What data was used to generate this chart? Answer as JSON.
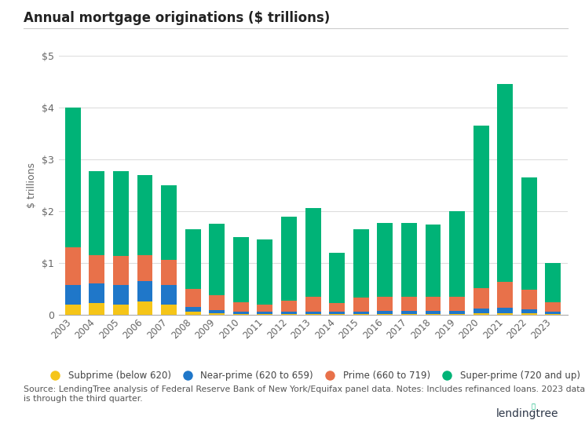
{
  "years": [
    2003,
    2004,
    2005,
    2006,
    2007,
    2008,
    2009,
    2010,
    2011,
    2012,
    2013,
    2014,
    2015,
    2016,
    2017,
    2018,
    2019,
    2020,
    2021,
    2022,
    2023
  ],
  "subprime": [
    0.2,
    0.22,
    0.2,
    0.25,
    0.2,
    0.05,
    0.02,
    0.01,
    0.01,
    0.01,
    0.01,
    0.01,
    0.01,
    0.01,
    0.01,
    0.01,
    0.01,
    0.02,
    0.02,
    0.02,
    0.01
  ],
  "near_prime": [
    0.38,
    0.38,
    0.38,
    0.4,
    0.38,
    0.1,
    0.07,
    0.05,
    0.04,
    0.04,
    0.05,
    0.04,
    0.05,
    0.06,
    0.06,
    0.06,
    0.06,
    0.1,
    0.12,
    0.08,
    0.05
  ],
  "prime": [
    0.72,
    0.55,
    0.55,
    0.5,
    0.48,
    0.35,
    0.28,
    0.18,
    0.15,
    0.22,
    0.28,
    0.18,
    0.27,
    0.28,
    0.28,
    0.27,
    0.28,
    0.4,
    0.5,
    0.38,
    0.18
  ],
  "super_prime": [
    2.7,
    1.63,
    1.65,
    1.55,
    1.44,
    1.15,
    1.38,
    1.26,
    1.25,
    1.63,
    1.72,
    0.97,
    1.32,
    1.43,
    1.43,
    1.4,
    1.65,
    3.13,
    3.82,
    2.18,
    0.76
  ],
  "colors": {
    "subprime": "#f5c518",
    "near_prime": "#1f77c9",
    "prime": "#e8714a",
    "super_prime": "#00b377"
  },
  "title": "Annual mortgage originations ($ trillions)",
  "ylabel": "$ trillions",
  "ylim": [
    0,
    5
  ],
  "yticks": [
    0,
    1,
    2,
    3,
    4,
    5
  ],
  "ytick_labels": [
    "0",
    "$1",
    "$2",
    "$3",
    "$4",
    "$5"
  ],
  "legend_labels": [
    "Subprime (below 620)",
    "Near-prime (620 to 659)",
    "Prime (660 to 719)",
    "Super-prime (720 and up)"
  ],
  "source_text": "Source: LendingTree analysis of Federal Reserve Bank of New York/Equifax panel data. Notes: Includes refinanced loans. 2023 data\nis through the third quarter.",
  "background_color": "#ffffff",
  "grid_color": "#dddddd",
  "title_line_color": "#cccccc"
}
